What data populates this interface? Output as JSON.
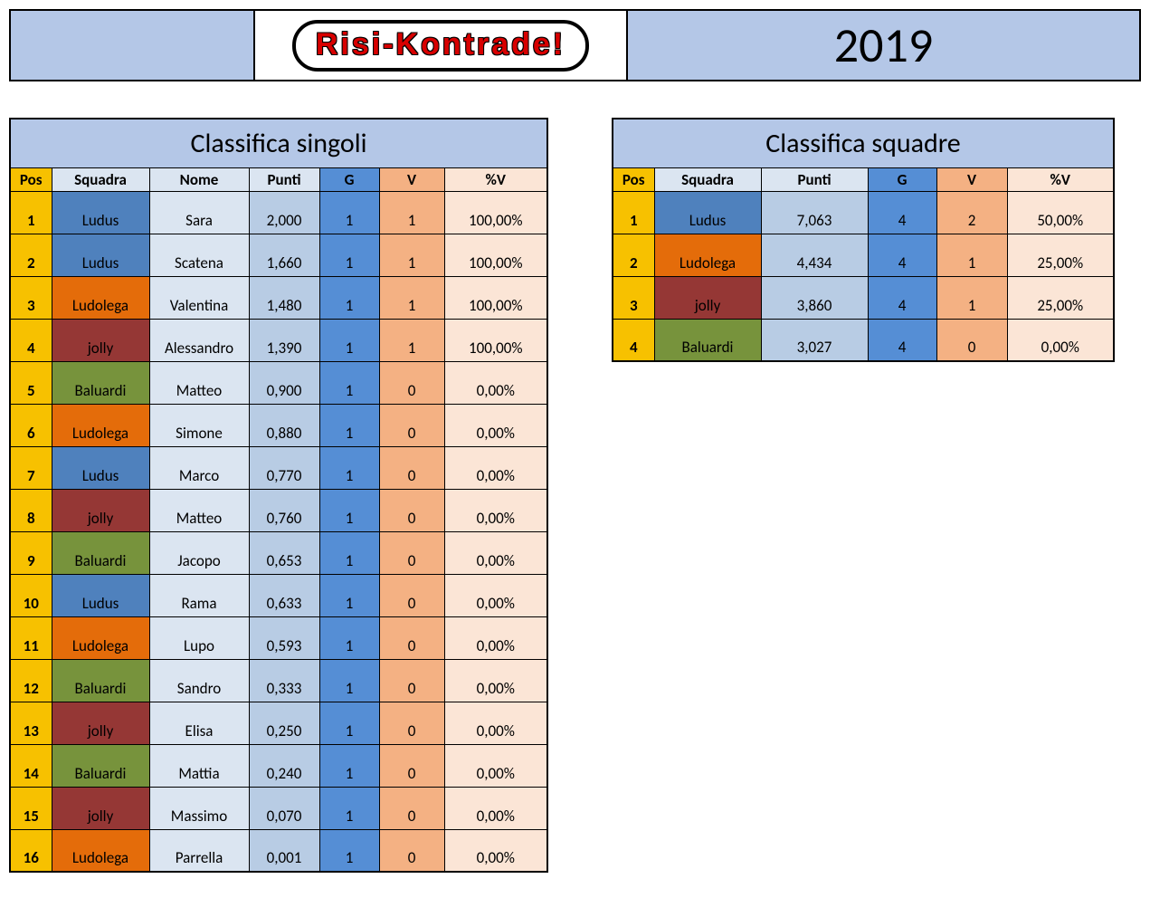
{
  "header": {
    "logo_text": "Risi-Kontrade!",
    "year": "2019"
  },
  "colors": {
    "header_bg": "#b4c7e7",
    "pos_bg": "#f7c100",
    "std_bg": "#dbe5f1",
    "pts_bg": "#b8cce4",
    "g_bg": "#558ed5",
    "v_bg": "#f4b183",
    "pct_bg": "#fbe5d6",
    "logo_red": "#d80000"
  },
  "team_colors": {
    "Ludus": "#4f81bd",
    "Ludolega": "#e46c0a",
    "jolly": "#953735",
    "Baluardi": "#77933c"
  },
  "singles": {
    "title": "Classifica singoli",
    "columns": [
      "Pos",
      "Squadra",
      "Nome",
      "Punti",
      "G",
      "V",
      "%V"
    ],
    "rows": [
      {
        "pos": "1",
        "team": "Ludus",
        "name": "Sara",
        "pts": "2,000",
        "g": "1",
        "v": "1",
        "pct": "100,00%"
      },
      {
        "pos": "2",
        "team": "Ludus",
        "name": "Scatena",
        "pts": "1,660",
        "g": "1",
        "v": "1",
        "pct": "100,00%"
      },
      {
        "pos": "3",
        "team": "Ludolega",
        "name": "Valentina",
        "pts": "1,480",
        "g": "1",
        "v": "1",
        "pct": "100,00%"
      },
      {
        "pos": "4",
        "team": "jolly",
        "name": "Alessandro",
        "pts": "1,390",
        "g": "1",
        "v": "1",
        "pct": "100,00%"
      },
      {
        "pos": "5",
        "team": "Baluardi",
        "name": "Matteo",
        "pts": "0,900",
        "g": "1",
        "v": "0",
        "pct": "0,00%"
      },
      {
        "pos": "6",
        "team": "Ludolega",
        "name": "Simone",
        "pts": "0,880",
        "g": "1",
        "v": "0",
        "pct": "0,00%"
      },
      {
        "pos": "7",
        "team": "Ludus",
        "name": "Marco",
        "pts": "0,770",
        "g": "1",
        "v": "0",
        "pct": "0,00%"
      },
      {
        "pos": "8",
        "team": "jolly",
        "name": "Matteo",
        "pts": "0,760",
        "g": "1",
        "v": "0",
        "pct": "0,00%"
      },
      {
        "pos": "9",
        "team": "Baluardi",
        "name": "Jacopo",
        "pts": "0,653",
        "g": "1",
        "v": "0",
        "pct": "0,00%"
      },
      {
        "pos": "10",
        "team": "Ludus",
        "name": "Rama",
        "pts": "0,633",
        "g": "1",
        "v": "0",
        "pct": "0,00%"
      },
      {
        "pos": "11",
        "team": "Ludolega",
        "name": "Lupo",
        "pts": "0,593",
        "g": "1",
        "v": "0",
        "pct": "0,00%"
      },
      {
        "pos": "12",
        "team": "Baluardi",
        "name": "Sandro",
        "pts": "0,333",
        "g": "1",
        "v": "0",
        "pct": "0,00%"
      },
      {
        "pos": "13",
        "team": "jolly",
        "name": "Elisa",
        "pts": "0,250",
        "g": "1",
        "v": "0",
        "pct": "0,00%"
      },
      {
        "pos": "14",
        "team": "Baluardi",
        "name": "Mattia",
        "pts": "0,240",
        "g": "1",
        "v": "0",
        "pct": "0,00%"
      },
      {
        "pos": "15",
        "team": "jolly",
        "name": "Massimo",
        "pts": "0,070",
        "g": "1",
        "v": "0",
        "pct": "0,00%"
      },
      {
        "pos": "16",
        "team": "Ludolega",
        "name": "Parrella",
        "pts": "0,001",
        "g": "1",
        "v": "0",
        "pct": "0,00%"
      }
    ]
  },
  "teams": {
    "title": "Classifica squadre",
    "columns": [
      "Pos",
      "Squadra",
      "Punti",
      "G",
      "V",
      "%V"
    ],
    "rows": [
      {
        "pos": "1",
        "team": "Ludus",
        "pts": "7,063",
        "g": "4",
        "v": "2",
        "pct": "50,00%"
      },
      {
        "pos": "2",
        "team": "Ludolega",
        "pts": "4,434",
        "g": "4",
        "v": "1",
        "pct": "25,00%"
      },
      {
        "pos": "3",
        "team": "jolly",
        "pts": "3,860",
        "g": "4",
        "v": "1",
        "pct": "25,00%"
      },
      {
        "pos": "4",
        "team": "Baluardi",
        "pts": "3,027",
        "g": "4",
        "v": "0",
        "pct": "0,00%"
      }
    ]
  }
}
